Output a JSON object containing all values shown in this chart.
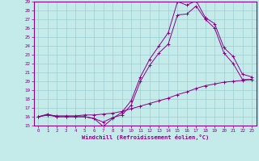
{
  "xlabel": "Windchill (Refroidissement éolien,°C)",
  "xlim": [
    -0.5,
    23.5
  ],
  "ylim": [
    15,
    29
  ],
  "yticks": [
    15,
    16,
    17,
    18,
    19,
    20,
    21,
    22,
    23,
    24,
    25,
    26,
    27,
    28,
    29
  ],
  "xticks": [
    0,
    1,
    2,
    3,
    4,
    5,
    6,
    7,
    8,
    9,
    10,
    11,
    12,
    13,
    14,
    15,
    16,
    17,
    18,
    19,
    20,
    21,
    22,
    23
  ],
  "bg_color": "#c5eaea",
  "grid_color": "#9ecece",
  "line_color": "#880088",
  "line1_x": [
    0,
    1,
    2,
    3,
    4,
    5,
    6,
    7,
    8,
    9,
    10,
    11,
    12,
    13,
    14,
    15,
    16,
    17,
    18,
    19,
    20,
    21,
    22,
    23
  ],
  "line1_y": [
    16.0,
    16.3,
    16.0,
    16.0,
    16.0,
    16.0,
    15.8,
    14.9,
    15.8,
    16.5,
    17.8,
    20.5,
    22.5,
    24.0,
    25.5,
    29.0,
    28.6,
    29.1,
    27.2,
    26.5,
    23.8,
    22.8,
    20.8,
    20.5
  ],
  "line2_x": [
    0,
    1,
    2,
    3,
    4,
    5,
    6,
    7,
    8,
    9,
    10,
    11,
    12,
    13,
    14,
    15,
    16,
    17,
    18,
    19,
    20,
    21,
    22,
    23
  ],
  "line2_y": [
    16.0,
    16.2,
    16.0,
    16.0,
    16.0,
    16.0,
    15.8,
    15.4,
    15.9,
    16.2,
    17.3,
    20.0,
    21.8,
    23.2,
    24.2,
    27.5,
    27.6,
    28.5,
    27.0,
    26.0,
    23.2,
    22.0,
    20.2,
    20.2
  ],
  "line3_x": [
    0,
    1,
    2,
    3,
    4,
    5,
    6,
    7,
    8,
    9,
    10,
    11,
    12,
    13,
    14,
    15,
    16,
    17,
    18,
    19,
    20,
    21,
    22,
    23
  ],
  "line3_y": [
    16.0,
    16.2,
    16.1,
    16.1,
    16.1,
    16.2,
    16.2,
    16.3,
    16.4,
    16.6,
    16.9,
    17.2,
    17.5,
    17.8,
    18.1,
    18.5,
    18.8,
    19.2,
    19.5,
    19.7,
    19.9,
    20.0,
    20.1,
    20.2
  ]
}
